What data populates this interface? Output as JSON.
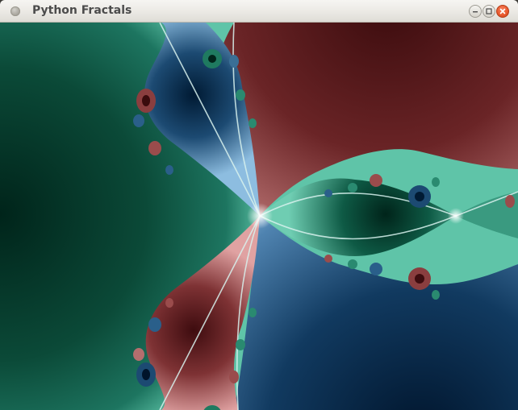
{
  "window": {
    "title": "Python Fractals",
    "buttons": {
      "menu_icon": "window-menu-icon",
      "minimize_icon": "minimize-icon",
      "maximize_icon": "maximize-icon",
      "close_icon": "close-icon"
    }
  },
  "fractal": {
    "palette": {
      "green_dark": "#00241a",
      "green_mid": "#0e5a45",
      "green_light": "#4fb79a",
      "red_dark": "#4a1214",
      "red_mid": "#8a3e3f",
      "red_light": "#d89a9a",
      "blue_dark": "#001a33",
      "blue_mid": "#1c4a72",
      "blue_light": "#7aaed6"
    }
  }
}
